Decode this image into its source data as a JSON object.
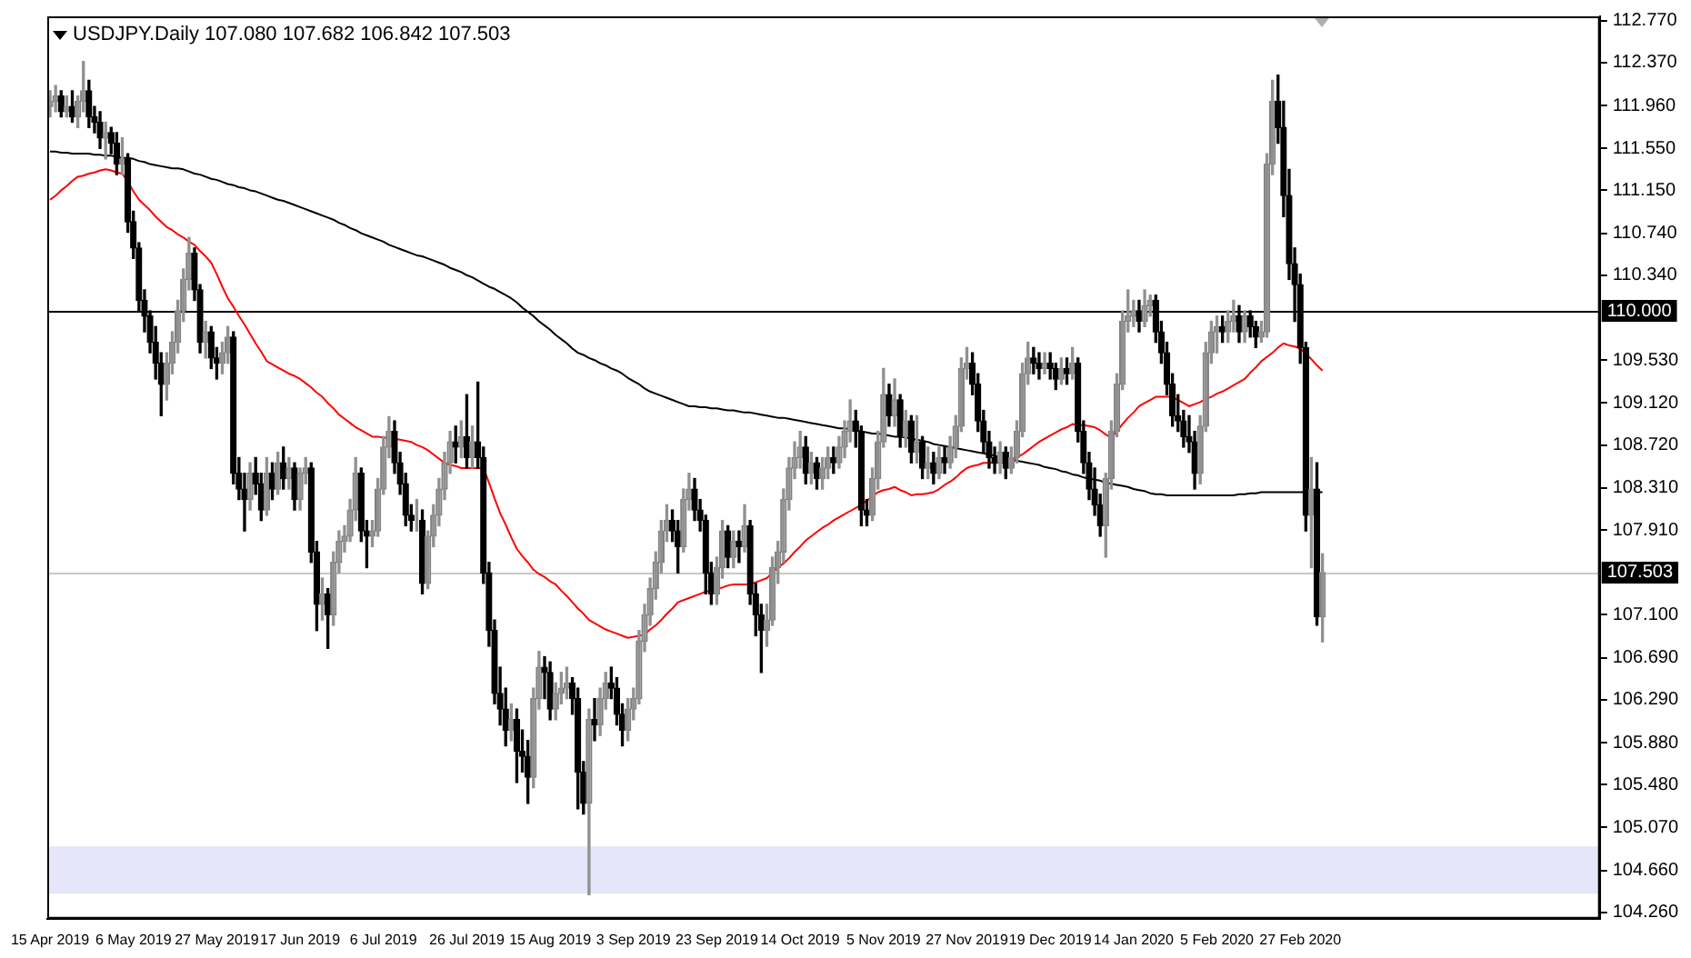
{
  "chart_data": {
    "type": "candlestick",
    "title": "USDJPY.Daily 107.080 107.682 106.842 107.503",
    "categories": [
      "15 Apr 2019",
      null,
      null,
      null,
      null,
      null,
      null,
      null,
      null,
      null,
      null,
      null,
      null,
      null,
      null,
      "6 May 2019",
      null,
      null,
      null,
      null,
      null,
      null,
      null,
      null,
      null,
      null,
      null,
      null,
      null,
      null,
      "27 May 2019",
      null,
      null,
      null,
      null,
      null,
      null,
      null,
      null,
      null,
      null,
      null,
      null,
      null,
      null,
      "17 Jun 2019",
      null,
      null,
      null,
      null,
      null,
      null,
      null,
      null,
      null,
      null,
      null,
      null,
      null,
      null,
      "6 Jul 2019",
      null,
      null,
      null,
      null,
      null,
      null,
      null,
      null,
      null,
      null,
      null,
      null,
      null,
      null,
      "26 Jul 2019",
      null,
      null,
      null,
      null,
      null,
      null,
      null,
      null,
      null,
      null,
      null,
      null,
      null,
      null,
      "15 Aug 2019",
      null,
      null,
      null,
      null,
      null,
      null,
      null,
      null,
      null,
      null,
      null,
      null,
      null,
      null,
      "3 Sep 2019",
      null,
      null,
      null,
      null,
      null,
      null,
      null,
      null,
      null,
      null,
      null,
      null,
      null,
      null,
      "23 Sep 2019",
      null,
      null,
      null,
      null,
      null,
      null,
      null,
      null,
      null,
      null,
      null,
      null,
      null,
      null,
      "14 Oct 2019",
      null,
      null,
      null,
      null,
      null,
      null,
      null,
      null,
      null,
      null,
      null,
      null,
      null,
      null,
      "5 Nov 2019",
      null,
      null,
      null,
      null,
      null,
      null,
      null,
      null,
      null,
      null,
      null,
      null,
      null,
      null,
      "27 Nov 2019",
      null,
      null,
      null,
      null,
      null,
      null,
      null,
      null,
      null,
      null,
      null,
      null,
      null,
      null,
      "19 Dec 2019",
      null,
      null,
      null,
      null,
      null,
      null,
      null,
      null,
      null,
      null,
      null,
      null,
      null,
      null,
      "14 Jan 2020",
      null,
      null,
      null,
      null,
      null,
      null,
      null,
      null,
      null,
      null,
      null,
      null,
      null,
      null,
      "5 Feb 2020",
      null,
      null,
      null,
      null,
      null,
      null,
      null,
      null,
      null,
      null,
      null,
      null,
      null,
      null,
      "27 Feb 2020",
      null,
      null,
      null,
      null
    ],
    "ohlc": [
      [
        111.95,
        112.1,
        111.85,
        112.0
      ],
      [
        112.0,
        112.15,
        111.9,
        112.05
      ],
      [
        112.05,
        112.1,
        111.85,
        111.9
      ],
      [
        111.9,
        112.05,
        111.85,
        111.95
      ],
      [
        111.95,
        112.1,
        111.8,
        111.85
      ],
      [
        111.85,
        112.05,
        111.75,
        112.0
      ],
      [
        112.0,
        112.38,
        111.9,
        112.1
      ],
      [
        112.1,
        112.2,
        111.75,
        111.85
      ],
      [
        111.85,
        111.95,
        111.7,
        111.8
      ],
      [
        111.8,
        111.9,
        111.55,
        111.65
      ],
      [
        111.65,
        111.8,
        111.45,
        111.7
      ],
      [
        111.7,
        111.75,
        111.5,
        111.6
      ],
      [
        111.6,
        111.7,
        111.3,
        111.4
      ],
      [
        111.4,
        111.65,
        111.3,
        111.45
      ],
      [
        111.45,
        111.5,
        110.75,
        110.85
      ],
      [
        110.85,
        110.95,
        110.5,
        110.6
      ],
      [
        110.6,
        110.65,
        110.0,
        110.1
      ],
      [
        110.1,
        110.2,
        109.8,
        109.95
      ],
      [
        109.95,
        110.0,
        109.6,
        109.7
      ],
      [
        109.7,
        109.85,
        109.35,
        109.5
      ],
      [
        109.5,
        109.6,
        109.0,
        109.3
      ],
      [
        109.3,
        109.6,
        109.15,
        109.5
      ],
      [
        109.5,
        109.8,
        109.4,
        109.7
      ],
      [
        109.7,
        110.1,
        109.6,
        110.0
      ],
      [
        110.0,
        110.4,
        109.9,
        110.3
      ],
      [
        110.3,
        110.7,
        110.2,
        110.55
      ],
      [
        110.55,
        110.6,
        110.1,
        110.2
      ],
      [
        110.2,
        110.25,
        109.6,
        109.7
      ],
      [
        109.7,
        109.9,
        109.55,
        109.8
      ],
      [
        109.8,
        109.85,
        109.45,
        109.55
      ],
      [
        109.55,
        109.65,
        109.35,
        109.5
      ],
      [
        109.5,
        109.7,
        109.4,
        109.6
      ],
      [
        109.6,
        109.85,
        109.5,
        109.75
      ],
      [
        109.75,
        109.8,
        108.35,
        108.45
      ],
      [
        108.45,
        108.6,
        108.2,
        108.3
      ],
      [
        108.3,
        108.45,
        107.9,
        108.2
      ],
      [
        108.2,
        108.55,
        108.1,
        108.45
      ],
      [
        108.45,
        108.6,
        108.25,
        108.35
      ],
      [
        108.35,
        108.45,
        108.0,
        108.1
      ],
      [
        108.1,
        108.6,
        108.05,
        108.45
      ],
      [
        108.45,
        108.55,
        108.2,
        108.3
      ],
      [
        108.3,
        108.65,
        108.25,
        108.55
      ],
      [
        108.55,
        108.7,
        108.3,
        108.4
      ],
      [
        108.4,
        108.6,
        108.3,
        108.5
      ],
      [
        108.5,
        108.55,
        108.1,
        108.2
      ],
      [
        108.2,
        108.5,
        108.1,
        108.45
      ],
      [
        108.45,
        108.6,
        108.35,
        108.5
      ],
      [
        108.5,
        108.55,
        107.6,
        107.7
      ],
      [
        107.7,
        107.8,
        106.95,
        107.2
      ],
      [
        107.2,
        107.45,
        107.05,
        107.3
      ],
      [
        107.3,
        107.35,
        106.78,
        107.1
      ],
      [
        107.1,
        107.7,
        107.0,
        107.6
      ],
      [
        107.6,
        107.9,
        107.5,
        107.8
      ],
      [
        107.8,
        107.95,
        107.7,
        107.85
      ],
      [
        107.85,
        108.2,
        107.8,
        108.1
      ],
      [
        108.1,
        108.6,
        108.0,
        108.45
      ],
      [
        108.45,
        108.5,
        107.8,
        107.9
      ],
      [
        107.9,
        108.0,
        107.55,
        107.85
      ],
      [
        107.85,
        108.0,
        107.75,
        107.9
      ],
      [
        107.9,
        108.4,
        107.85,
        108.3
      ],
      [
        108.3,
        108.8,
        108.25,
        108.7
      ],
      [
        108.7,
        108.99,
        108.6,
        108.85
      ],
      [
        108.85,
        108.95,
        108.45,
        108.55
      ],
      [
        108.55,
        108.65,
        108.25,
        108.35
      ],
      [
        108.35,
        108.45,
        107.95,
        108.05
      ],
      [
        108.05,
        108.15,
        107.9,
        108.0
      ],
      [
        108.0,
        108.2,
        107.9,
        108.0
      ],
      [
        108.0,
        108.1,
        107.3,
        107.4
      ],
      [
        107.4,
        107.9,
        107.35,
        107.85
      ],
      [
        107.85,
        108.15,
        107.75,
        108.05
      ],
      [
        108.05,
        108.4,
        107.95,
        108.3
      ],
      [
        108.3,
        108.65,
        108.2,
        108.55
      ],
      [
        108.55,
        108.85,
        108.45,
        108.75
      ],
      [
        108.75,
        108.9,
        108.55,
        108.7
      ],
      [
        108.7,
        108.95,
        108.6,
        108.8
      ],
      [
        108.8,
        109.2,
        108.5,
        108.6
      ],
      [
        108.6,
        108.9,
        108.5,
        108.75
      ],
      [
        108.75,
        109.32,
        108.5,
        108.6
      ],
      [
        108.6,
        108.7,
        107.4,
        107.5
      ],
      [
        107.5,
        107.6,
        106.8,
        106.95
      ],
      [
        106.95,
        107.05,
        106.25,
        106.35
      ],
      [
        106.35,
        106.6,
        106.05,
        106.2
      ],
      [
        106.2,
        106.4,
        105.85,
        106.0
      ],
      [
        106.0,
        106.25,
        105.9,
        106.1
      ],
      [
        106.1,
        106.2,
        105.5,
        105.8
      ],
      [
        105.8,
        106.0,
        105.6,
        105.75
      ],
      [
        105.75,
        105.9,
        105.3,
        105.55
      ],
      [
        105.55,
        106.4,
        105.45,
        106.3
      ],
      [
        106.3,
        106.75,
        106.2,
        106.6
      ],
      [
        106.6,
        106.7,
        106.3,
        106.55
      ],
      [
        106.55,
        106.65,
        106.1,
        106.2
      ],
      [
        106.2,
        106.45,
        106.1,
        106.35
      ],
      [
        106.35,
        106.55,
        106.25,
        106.4
      ],
      [
        106.4,
        106.6,
        106.3,
        106.45
      ],
      [
        106.45,
        106.5,
        106.15,
        106.3
      ],
      [
        106.3,
        106.4,
        105.25,
        105.6
      ],
      [
        105.6,
        105.7,
        105.2,
        105.3
      ],
      [
        105.3,
        106.2,
        104.43,
        106.1
      ],
      [
        106.1,
        106.3,
        105.9,
        106.05
      ],
      [
        106.05,
        106.4,
        105.95,
        106.3
      ],
      [
        106.3,
        106.55,
        106.2,
        106.45
      ],
      [
        106.45,
        106.6,
        106.3,
        106.4
      ],
      [
        106.4,
        106.5,
        106.05,
        106.15
      ],
      [
        106.15,
        106.25,
        105.85,
        106.0
      ],
      [
        106.0,
        106.3,
        105.9,
        106.2
      ],
      [
        106.2,
        106.4,
        106.1,
        106.3
      ],
      [
        106.3,
        106.95,
        106.25,
        106.85
      ],
      [
        106.85,
        107.2,
        106.75,
        107.1
      ],
      [
        107.1,
        107.45,
        107.0,
        107.35
      ],
      [
        107.35,
        107.7,
        107.25,
        107.6
      ],
      [
        107.6,
        108.0,
        107.5,
        107.9
      ],
      [
        107.9,
        108.15,
        107.8,
        108.0
      ],
      [
        108.0,
        108.1,
        107.8,
        107.9
      ],
      [
        107.9,
        108.0,
        107.5,
        107.75
      ],
      [
        107.75,
        108.3,
        107.7,
        108.2
      ],
      [
        108.2,
        108.45,
        108.1,
        108.3
      ],
      [
        108.3,
        108.4,
        108.0,
        108.1
      ],
      [
        108.1,
        108.2,
        107.9,
        108.0
      ],
      [
        108.0,
        108.05,
        107.3,
        107.5
      ],
      [
        107.5,
        107.6,
        107.2,
        107.3
      ],
      [
        107.3,
        107.65,
        107.2,
        107.55
      ],
      [
        107.55,
        108.0,
        107.45,
        107.9
      ],
      [
        107.9,
        107.95,
        107.55,
        107.65
      ],
      [
        107.65,
        107.9,
        107.55,
        107.8
      ],
      [
        107.8,
        107.9,
        107.6,
        107.75
      ],
      [
        107.75,
        108.15,
        107.7,
        107.95
      ],
      [
        107.95,
        108.0,
        107.2,
        107.3
      ],
      [
        107.3,
        107.4,
        106.9,
        107.1
      ],
      [
        107.1,
        107.2,
        106.55,
        106.95
      ],
      [
        106.95,
        107.2,
        106.8,
        107.05
      ],
      [
        107.05,
        107.65,
        107.0,
        107.55
      ],
      [
        107.55,
        107.8,
        107.4,
        107.7
      ],
      [
        107.7,
        108.3,
        107.6,
        108.2
      ],
      [
        108.2,
        108.6,
        108.1,
        108.5
      ],
      [
        108.5,
        108.75,
        108.4,
        108.6
      ],
      [
        108.6,
        108.85,
        108.5,
        108.7
      ],
      [
        108.7,
        108.8,
        108.35,
        108.45
      ],
      [
        108.45,
        108.65,
        108.35,
        108.55
      ],
      [
        108.55,
        108.6,
        108.3,
        108.4
      ],
      [
        108.4,
        108.6,
        108.3,
        108.5
      ],
      [
        108.5,
        108.7,
        108.4,
        108.6
      ],
      [
        108.6,
        108.7,
        108.45,
        108.55
      ],
      [
        108.55,
        108.8,
        108.5,
        108.7
      ],
      [
        108.7,
        108.95,
        108.6,
        108.85
      ],
      [
        108.85,
        109.15,
        108.75,
        108.95
      ],
      [
        108.95,
        109.05,
        108.7,
        108.85
      ],
      [
        108.85,
        108.9,
        107.95,
        108.1
      ],
      [
        108.1,
        108.2,
        107.95,
        108.05
      ],
      [
        108.05,
        108.5,
        108.0,
        108.4
      ],
      [
        108.4,
        108.85,
        108.3,
        108.75
      ],
      [
        108.75,
        109.45,
        108.7,
        109.2
      ],
      [
        109.2,
        109.3,
        108.9,
        109.0
      ],
      [
        109.0,
        109.35,
        108.9,
        109.15
      ],
      [
        109.15,
        109.2,
        108.7,
        108.8
      ],
      [
        108.8,
        109.05,
        108.7,
        108.95
      ],
      [
        108.95,
        109.0,
        108.55,
        108.65
      ],
      [
        108.65,
        109.0,
        108.55,
        108.75
      ],
      [
        108.75,
        108.8,
        108.4,
        108.5
      ],
      [
        108.5,
        108.7,
        108.4,
        108.55
      ],
      [
        108.55,
        108.65,
        108.35,
        108.45
      ],
      [
        108.45,
        108.7,
        108.4,
        108.6
      ],
      [
        108.6,
        108.7,
        108.45,
        108.55
      ],
      [
        108.55,
        108.8,
        108.5,
        108.7
      ],
      [
        108.7,
        109.0,
        108.6,
        108.9
      ],
      [
        108.9,
        109.55,
        108.85,
        109.45
      ],
      [
        109.45,
        109.65,
        109.35,
        109.5
      ],
      [
        109.5,
        109.6,
        109.2,
        109.3
      ],
      [
        109.3,
        109.4,
        108.85,
        108.95
      ],
      [
        108.95,
        109.05,
        108.65,
        108.75
      ],
      [
        108.75,
        108.85,
        108.5,
        108.6
      ],
      [
        108.6,
        108.7,
        108.45,
        108.55
      ],
      [
        108.55,
        108.75,
        108.45,
        108.65
      ],
      [
        108.65,
        108.7,
        108.4,
        108.5
      ],
      [
        108.5,
        108.7,
        108.45,
        108.6
      ],
      [
        108.6,
        108.95,
        108.55,
        108.85
      ],
      [
        108.85,
        109.5,
        108.8,
        109.4
      ],
      [
        109.4,
        109.7,
        109.3,
        109.55
      ],
      [
        109.55,
        109.65,
        109.4,
        109.5
      ],
      [
        109.5,
        109.6,
        109.35,
        109.45
      ],
      [
        109.45,
        109.6,
        109.4,
        109.5
      ],
      [
        109.5,
        109.6,
        109.35,
        109.45
      ],
      [
        109.45,
        109.5,
        109.25,
        109.35
      ],
      [
        109.35,
        109.55,
        109.3,
        109.45
      ],
      [
        109.45,
        109.55,
        109.3,
        109.4
      ],
      [
        109.4,
        109.65,
        109.35,
        109.5
      ],
      [
        109.5,
        109.55,
        108.75,
        108.85
      ],
      [
        108.85,
        108.95,
        108.45,
        108.55
      ],
      [
        108.55,
        108.65,
        108.2,
        108.3
      ],
      [
        108.3,
        108.5,
        108.05,
        108.15
      ],
      [
        108.15,
        108.25,
        107.85,
        107.95
      ],
      [
        107.95,
        108.45,
        107.65,
        108.4
      ],
      [
        108.4,
        108.95,
        108.3,
        108.85
      ],
      [
        108.85,
        109.4,
        108.8,
        109.3
      ],
      [
        109.3,
        110.0,
        109.25,
        109.9
      ],
      [
        109.9,
        110.2,
        109.8,
        109.95
      ],
      [
        109.95,
        110.1,
        109.85,
        110.0
      ],
      [
        110.0,
        110.1,
        109.8,
        109.9
      ],
      [
        109.9,
        110.2,
        109.85,
        110.05
      ],
      [
        110.05,
        110.15,
        109.95,
        110.1
      ],
      [
        110.1,
        110.15,
        109.7,
        109.8
      ],
      [
        109.8,
        109.9,
        109.5,
        109.6
      ],
      [
        109.6,
        109.7,
        109.2,
        109.3
      ],
      [
        109.3,
        109.4,
        108.9,
        109.0
      ],
      [
        109.0,
        109.2,
        108.85,
        108.95
      ],
      [
        108.95,
        109.05,
        108.7,
        108.8
      ],
      [
        108.8,
        109.0,
        108.65,
        108.75
      ],
      [
        108.75,
        108.85,
        108.3,
        108.45
      ],
      [
        108.45,
        109.0,
        108.35,
        108.9
      ],
      [
        108.9,
        109.7,
        108.85,
        109.6
      ],
      [
        109.6,
        109.9,
        109.5,
        109.8
      ],
      [
        109.8,
        109.95,
        109.6,
        109.85
      ],
      [
        109.85,
        109.95,
        109.7,
        109.8
      ],
      [
        109.8,
        110.0,
        109.7,
        109.9
      ],
      [
        109.9,
        110.1,
        109.8,
        109.95
      ],
      [
        109.95,
        110.05,
        109.7,
        109.8
      ],
      [
        109.8,
        110.0,
        109.7,
        109.95
      ],
      [
        109.95,
        110.0,
        109.75,
        109.85
      ],
      [
        109.85,
        109.9,
        109.65,
        109.75
      ],
      [
        109.75,
        109.9,
        109.7,
        109.8
      ],
      [
        109.8,
        111.5,
        109.75,
        111.4
      ],
      [
        111.4,
        112.2,
        111.3,
        112.0
      ],
      [
        112.0,
        112.25,
        111.6,
        111.75
      ],
      [
        111.75,
        112.0,
        110.9,
        111.1
      ],
      [
        111.1,
        111.35,
        110.3,
        110.45
      ],
      [
        110.45,
        110.6,
        109.9,
        110.25
      ],
      [
        110.25,
        110.35,
        109.5,
        109.65
      ],
      [
        109.65,
        109.7,
        107.9,
        108.05
      ],
      [
        108.05,
        108.6,
        107.55,
        108.3
      ],
      [
        108.3,
        108.55,
        107.0,
        107.08
      ],
      [
        107.08,
        107.682,
        106.842,
        107.503
      ]
    ],
    "series": [
      {
        "type": "line",
        "color": "#ff0000",
        "values": [
          111.06,
          111.1,
          111.15,
          111.19,
          111.24,
          111.28,
          111.29,
          111.31,
          111.32,
          111.34,
          111.35,
          111.34,
          111.32,
          111.31,
          111.23,
          111.14,
          111.06,
          111.01,
          110.96,
          110.9,
          110.85,
          110.8,
          110.77,
          110.73,
          110.7,
          110.66,
          110.63,
          110.57,
          110.52,
          110.46,
          110.35,
          110.23,
          110.12,
          110.04,
          109.95,
          109.87,
          109.78,
          109.69,
          109.61,
          109.52,
          109.49,
          109.46,
          109.43,
          109.4,
          109.38,
          109.35,
          109.31,
          109.27,
          109.22,
          109.18,
          109.12,
          109.07,
          109.01,
          108.97,
          108.93,
          108.89,
          108.86,
          108.83,
          108.8,
          108.8,
          108.79,
          108.79,
          108.78,
          108.77,
          108.76,
          108.75,
          108.72,
          108.7,
          108.67,
          108.63,
          108.59,
          108.55,
          108.53,
          108.52,
          108.5,
          108.5,
          108.5,
          108.5,
          108.5,
          108.36,
          108.21,
          108.07,
          107.96,
          107.84,
          107.73,
          107.66,
          107.6,
          107.53,
          107.49,
          107.46,
          107.42,
          107.39,
          107.33,
          107.28,
          107.22,
          107.16,
          107.11,
          107.05,
          107.02,
          106.99,
          106.96,
          106.94,
          106.92,
          106.9,
          106.88,
          106.89,
          106.9,
          106.91,
          106.96,
          107.0,
          107.05,
          107.11,
          107.16,
          107.22,
          107.24,
          107.26,
          107.28,
          107.3,
          107.32,
          107.33,
          107.35,
          107.36,
          107.38,
          107.39,
          107.39,
          107.39,
          107.39,
          107.41,
          107.43,
          107.45,
          107.5,
          107.55,
          107.59,
          107.64,
          107.7,
          107.75,
          107.81,
          107.85,
          107.89,
          107.93,
          107.96,
          108.0,
          108.03,
          108.06,
          108.09,
          108.12,
          108.15,
          108.19,
          108.23,
          108.27,
          108.29,
          108.3,
          108.32,
          108.29,
          108.27,
          108.24,
          108.25,
          108.25,
          108.26,
          108.27,
          108.3,
          108.34,
          108.37,
          108.41,
          108.46,
          108.5,
          108.52,
          108.53,
          108.55,
          108.55,
          108.55,
          108.55,
          108.55,
          108.58,
          108.6,
          108.63,
          108.67,
          108.71,
          108.75,
          108.78,
          108.81,
          108.84,
          108.87,
          108.89,
          108.92,
          108.91,
          108.91,
          108.9,
          108.89,
          108.86,
          108.82,
          108.79,
          108.85,
          108.92,
          108.98,
          109.03,
          109.09,
          109.12,
          109.15,
          109.18,
          109.18,
          109.18,
          109.18,
          109.15,
          109.12,
          109.09,
          109.11,
          109.13,
          109.16,
          109.18,
          109.21,
          109.23,
          109.26,
          109.29,
          109.32,
          109.35,
          109.41,
          109.46,
          109.52,
          109.56,
          109.6,
          109.65,
          109.69,
          109.67,
          109.66,
          109.64,
          109.59,
          109.54,
          109.48,
          109.43
        ]
      },
      {
        "type": "line",
        "color": "#000000",
        "values": [
          111.52,
          111.52,
          111.51,
          111.51,
          111.5,
          111.5,
          111.5,
          111.5,
          111.49,
          111.49,
          111.48,
          111.48,
          111.47,
          111.46,
          111.46,
          111.45,
          111.43,
          111.42,
          111.4,
          111.39,
          111.38,
          111.37,
          111.36,
          111.36,
          111.35,
          111.33,
          111.31,
          111.3,
          111.28,
          111.26,
          111.25,
          111.23,
          111.21,
          111.2,
          111.18,
          111.17,
          111.15,
          111.14,
          111.12,
          111.1,
          111.08,
          111.06,
          111.05,
          111.03,
          111.01,
          110.99,
          110.97,
          110.95,
          110.93,
          110.91,
          110.89,
          110.87,
          110.84,
          110.82,
          110.79,
          110.77,
          110.74,
          110.72,
          110.7,
          110.68,
          110.66,
          110.63,
          110.61,
          110.59,
          110.57,
          110.55,
          110.53,
          110.52,
          110.5,
          110.48,
          110.46,
          110.44,
          110.41,
          110.39,
          110.37,
          110.34,
          110.32,
          110.29,
          110.26,
          110.23,
          110.21,
          110.18,
          110.15,
          110.12,
          110.08,
          110.03,
          109.99,
          109.95,
          109.9,
          109.86,
          109.82,
          109.77,
          109.73,
          109.69,
          109.64,
          109.6,
          109.58,
          109.55,
          109.53,
          109.5,
          109.48,
          109.45,
          109.43,
          109.4,
          109.36,
          109.33,
          109.3,
          109.26,
          109.23,
          109.21,
          109.19,
          109.17,
          109.15,
          109.13,
          109.11,
          109.09,
          109.09,
          109.08,
          109.08,
          109.07,
          109.07,
          109.06,
          109.05,
          109.05,
          109.04,
          109.03,
          109.03,
          109.02,
          109.01,
          109.0,
          108.99,
          108.98,
          108.98,
          108.97,
          108.96,
          108.95,
          108.94,
          108.93,
          108.92,
          108.91,
          108.9,
          108.89,
          108.88,
          108.88,
          108.87,
          108.86,
          108.85,
          108.84,
          108.83,
          108.83,
          108.82,
          108.81,
          108.8,
          108.8,
          108.79,
          108.78,
          108.77,
          108.76,
          108.75,
          108.73,
          108.72,
          108.71,
          108.7,
          108.69,
          108.68,
          108.67,
          108.66,
          108.65,
          108.64,
          108.63,
          108.62,
          108.6,
          108.59,
          108.58,
          108.57,
          108.56,
          108.55,
          108.54,
          108.53,
          108.51,
          108.5,
          108.49,
          108.47,
          108.46,
          108.44,
          108.43,
          108.41,
          108.4,
          108.39,
          108.38,
          108.36,
          108.35,
          108.34,
          108.33,
          108.32,
          108.3,
          108.29,
          108.28,
          108.26,
          108.25,
          108.25,
          108.24,
          108.24,
          108.24,
          108.24,
          108.24,
          108.24,
          108.24,
          108.24,
          108.24,
          108.24,
          108.24,
          108.24,
          108.24,
          108.25,
          108.25,
          108.26,
          108.26,
          108.27,
          108.27,
          108.27,
          108.27,
          108.27,
          108.27,
          108.27,
          108.27,
          108.27,
          108.27,
          108.27,
          108.27
        ]
      }
    ],
    "ylim": [
      104.2,
      112.81
    ],
    "yticks": [
      {
        "value": 112.77,
        "label": "112.770"
      },
      {
        "value": 112.37,
        "label": "112.370"
      },
      {
        "value": 111.96,
        "label": "111.960"
      },
      {
        "value": 111.55,
        "label": "111.550"
      },
      {
        "value": 111.15,
        "label": "111.150"
      },
      {
        "value": 110.74,
        "label": "110.740"
      },
      {
        "value": 110.34,
        "label": "110.340"
      },
      {
        "value": 109.53,
        "label": "109.530"
      },
      {
        "value": 109.12,
        "label": "109.120"
      },
      {
        "value": 108.72,
        "label": "108.720"
      },
      {
        "value": 108.31,
        "label": "108.310"
      },
      {
        "value": 107.91,
        "label": "107.910"
      },
      {
        "value": 107.1,
        "label": "107.100"
      },
      {
        "value": 106.69,
        "label": "106.690"
      },
      {
        "value": 106.29,
        "label": "106.290"
      },
      {
        "value": 105.88,
        "label": "105.880"
      },
      {
        "value": 105.48,
        "label": "105.480"
      },
      {
        "value": 105.07,
        "label": "105.070"
      },
      {
        "value": 104.66,
        "label": "104.660"
      },
      {
        "value": 104.26,
        "label": "104.260"
      }
    ],
    "ref_lines": [
      {
        "axis": "y",
        "value": 110.0,
        "label": "110.000",
        "color": "#000000"
      },
      {
        "axis": "y",
        "value": 107.503,
        "label": "107.503",
        "color": "#c8c8c8"
      }
    ],
    "bands": [
      {
        "axis": "y",
        "from": 104.44,
        "to": 104.89,
        "color": "#e6e6fa"
      }
    ]
  }
}
